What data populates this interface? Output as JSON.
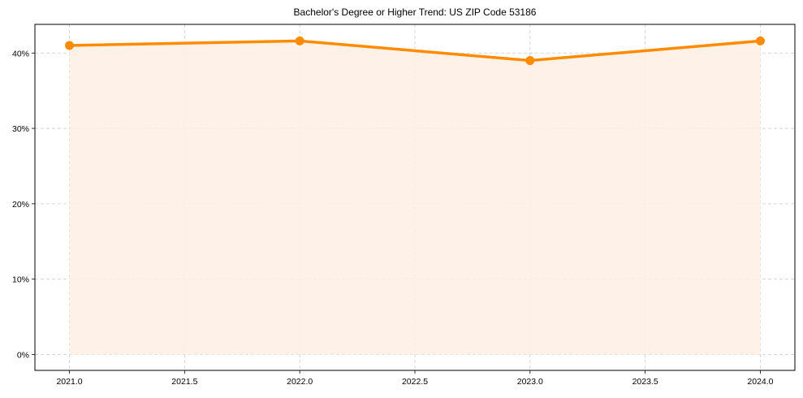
{
  "chart_data": {
    "type": "line",
    "title": "Bachelor's Degree or Higher Trend: US ZIP Code 53186",
    "xlabel": "",
    "ylabel": "",
    "x": [
      2021,
      2022,
      2023,
      2024
    ],
    "series": [
      {
        "name": "Bachelor's Degree or Higher",
        "values": [
          41.0,
          41.6,
          39.0,
          41.6
        ],
        "color": "#ff8c00",
        "fill": "#fef1e5"
      }
    ],
    "x_ticks": [
      "2021.0",
      "2021.5",
      "2022.0",
      "2022.5",
      "2023.0",
      "2023.5",
      "2024.0"
    ],
    "x_tick_values": [
      2021.0,
      2021.5,
      2022.0,
      2022.5,
      2023.0,
      2023.5,
      2024.0
    ],
    "y_ticks": [
      "0%",
      "10%",
      "20%",
      "30%",
      "40%"
    ],
    "y_tick_values": [
      0,
      10,
      20,
      30,
      40
    ],
    "xlim": [
      2020.85,
      2024.15
    ],
    "ylim": [
      -2.1,
      43.8
    ],
    "grid": true,
    "legend": null
  }
}
